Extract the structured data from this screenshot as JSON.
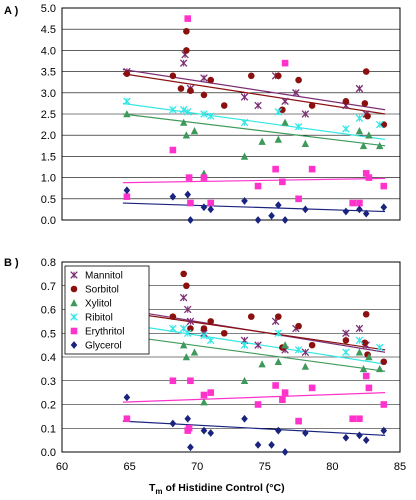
{
  "colors": {
    "Mannitol": "#7b2d73",
    "Sorbitol": "#8b1111",
    "Xylitol": "#3e9a5a",
    "Ribitol": "#33e6e6",
    "Erythritol": "#ff33cc",
    "Glycerol": "#1a237e"
  },
  "chart_data": [
    {
      "panel": "A",
      "label": "A )",
      "type": "scatter",
      "xlim": [
        60,
        85
      ],
      "ylim": [
        0,
        5
      ],
      "yticks": [
        "0.0",
        "0.5",
        "1.0",
        "1.5",
        "2.0",
        "2.5",
        "3.0",
        "3.5",
        "4.0",
        "4.5",
        "5.0"
      ],
      "grid": true,
      "series": [
        {
          "name": "Mannitol",
          "marker": "x",
          "trend": [
            3.55,
            2.6
          ],
          "points": [
            [
              64.8,
              3.5
            ],
            [
              69,
              3.7
            ],
            [
              69.1,
              3.9
            ],
            [
              69.5,
              3.1
            ],
            [
              70.5,
              3.35
            ],
            [
              73.5,
              2.9
            ],
            [
              74.5,
              2.7
            ],
            [
              75.8,
              3.4
            ],
            [
              76.5,
              2.8
            ],
            [
              77.3,
              3.0
            ],
            [
              78,
              2.5
            ],
            [
              81,
              2.7
            ],
            [
              82,
              3.1
            ],
            [
              82.5,
              2.5
            ]
          ]
        },
        {
          "name": "Sorbitol",
          "marker": "circle",
          "trend": [
            3.45,
            2.5
          ],
          "points": [
            [
              64.8,
              3.45
            ],
            [
              68.2,
              3.4
            ],
            [
              68.8,
              3.1
            ],
            [
              69.2,
              4.45
            ],
            [
              69.2,
              4.0
            ],
            [
              69.5,
              3.05
            ],
            [
              70.5,
              2.95
            ],
            [
              71,
              3.3
            ],
            [
              72,
              2.7
            ],
            [
              74,
              3.4
            ],
            [
              76,
              3.4
            ],
            [
              76.3,
              2.6
            ],
            [
              77.5,
              3.3
            ],
            [
              78.5,
              2.7
            ],
            [
              81,
              2.8
            ],
            [
              82.4,
              2.75
            ],
            [
              82.5,
              3.5
            ],
            [
              82.6,
              2.45
            ],
            [
              83.8,
              2.25
            ]
          ]
        },
        {
          "name": "Ribitol",
          "marker": "x",
          "trend": [
            2.75,
            1.9
          ],
          "points": [
            [
              64.8,
              2.8
            ],
            [
              68.2,
              2.6
            ],
            [
              69,
              2.6
            ],
            [
              69.3,
              2.55
            ],
            [
              70.5,
              2.5
            ],
            [
              71,
              2.45
            ],
            [
              73.5,
              2.3
            ],
            [
              76,
              2.55
            ],
            [
              77.5,
              2.2
            ],
            [
              81,
              2.15
            ],
            [
              82,
              2.4
            ],
            [
              83.5,
              2.25
            ]
          ]
        },
        {
          "name": "Xylitol",
          "marker": "triangle",
          "trend": [
            2.5,
            1.75
          ],
          "points": [
            [
              64.8,
              2.5
            ],
            [
              69,
              2.3
            ],
            [
              69.2,
              2.0
            ],
            [
              69.8,
              2.1
            ],
            [
              70.5,
              1.1
            ],
            [
              73.5,
              1.5
            ],
            [
              74.8,
              1.85
            ],
            [
              76,
              1.9
            ],
            [
              76.5,
              2.3
            ],
            [
              78,
              1.8
            ],
            [
              82,
              2.1
            ],
            [
              82.3,
              1.75
            ],
            [
              82.7,
              2.0
            ],
            [
              83.5,
              1.75
            ]
          ]
        },
        {
          "name": "Erythritol",
          "marker": "square",
          "trend": [
            0.88,
            0.98
          ],
          "points": [
            [
              64.8,
              0.55
            ],
            [
              68.2,
              1.65
            ],
            [
              69.3,
              4.75
            ],
            [
              69.4,
              1.0
            ],
            [
              69.5,
              0.4
            ],
            [
              70.5,
              1.0
            ],
            [
              71,
              0.4
            ],
            [
              74.5,
              0.8
            ],
            [
              75.8,
              1.2
            ],
            [
              76.5,
              3.7
            ],
            [
              76.3,
              0.9
            ],
            [
              77.5,
              0.5
            ],
            [
              78.5,
              1.2
            ],
            [
              81.5,
              0.4
            ],
            [
              82,
              0.4
            ],
            [
              82.5,
              1.1
            ],
            [
              82.7,
              1.0
            ],
            [
              83.8,
              0.8
            ]
          ]
        },
        {
          "name": "Glycerol",
          "marker": "diamond",
          "trend": [
            0.4,
            0.2
          ],
          "points": [
            [
              64.8,
              0.7
            ],
            [
              68.2,
              0.55
            ],
            [
              69.3,
              0.6
            ],
            [
              69.5,
              0.0
            ],
            [
              70.5,
              0.3
            ],
            [
              71,
              0.25
            ],
            [
              73.5,
              0.45
            ],
            [
              74.5,
              0.0
            ],
            [
              75.5,
              0.1
            ],
            [
              76,
              0.35
            ],
            [
              76.5,
              0.0
            ],
            [
              78,
              0.25
            ],
            [
              81,
              0.2
            ],
            [
              82,
              0.25
            ],
            [
              82.5,
              0.15
            ],
            [
              83.8,
              0.3
            ]
          ]
        }
      ]
    },
    {
      "panel": "B",
      "label": "B )",
      "type": "scatter",
      "xlim": [
        60,
        85
      ],
      "ylim": [
        0,
        0.8
      ],
      "xticks": [
        "60",
        "65",
        "70",
        "75",
        "80",
        "85"
      ],
      "yticks": [
        "0.0",
        "0.1",
        "0.2",
        "0.3",
        "0.4",
        "0.5",
        "0.6",
        "0.7",
        "0.8"
      ],
      "xlabel_main": "T",
      "xlabel_sub": "m",
      "xlabel_rest": " of Histidine Control (°C)",
      "grid": true,
      "legend": {
        "position": "top-left",
        "entries": [
          "Mannitol",
          "Sorbitol",
          "Xylitol",
          "Ribitol",
          "Erythritol",
          "Glycerol"
        ]
      },
      "series": [
        {
          "name": "Mannitol",
          "marker": "x",
          "trend": [
            0.6,
            0.42
          ],
          "points": [
            [
              64.8,
              0.58
            ],
            [
              69,
              0.65
            ],
            [
              69.3,
              0.6
            ],
            [
              69.5,
              0.55
            ],
            [
              70.5,
              0.5
            ],
            [
              73.5,
              0.47
            ],
            [
              74.5,
              0.45
            ],
            [
              75.8,
              0.55
            ],
            [
              76.5,
              0.43
            ],
            [
              77.3,
              0.52
            ],
            [
              78,
              0.42
            ],
            [
              81,
              0.5
            ],
            [
              82,
              0.52
            ],
            [
              82.5,
              0.45
            ]
          ]
        },
        {
          "name": "Sorbitol",
          "marker": "circle",
          "trend": [
            0.59,
            0.43
          ],
          "points": [
            [
              64.8,
              0.58
            ],
            [
              68.2,
              0.57
            ],
            [
              69,
              0.75
            ],
            [
              69.2,
              0.7
            ],
            [
              69.5,
              0.52
            ],
            [
              70.5,
              0.52
            ],
            [
              71,
              0.55
            ],
            [
              72,
              0.5
            ],
            [
              74,
              0.57
            ],
            [
              76,
              0.57
            ],
            [
              76.3,
              0.44
            ],
            [
              77.5,
              0.53
            ],
            [
              78.5,
              0.45
            ],
            [
              81,
              0.47
            ],
            [
              82.4,
              0.46
            ],
            [
              82.5,
              0.58
            ],
            [
              82.6,
              0.41
            ],
            [
              83.8,
              0.38
            ]
          ]
        },
        {
          "name": "Ribitol",
          "marker": "x",
          "trend": [
            0.54,
            0.37
          ],
          "points": [
            [
              64.8,
              0.55
            ],
            [
              68.2,
              0.52
            ],
            [
              69,
              0.52
            ],
            [
              69.3,
              0.5
            ],
            [
              70.5,
              0.49
            ],
            [
              71,
              0.47
            ],
            [
              73.5,
              0.45
            ],
            [
              76,
              0.5
            ],
            [
              77.5,
              0.43
            ],
            [
              81,
              0.42
            ],
            [
              82,
              0.47
            ],
            [
              83.5,
              0.44
            ]
          ]
        },
        {
          "name": "Xylitol",
          "marker": "triangle",
          "trend": [
            0.49,
            0.34
          ],
          "points": [
            [
              64.8,
              0.5
            ],
            [
              69,
              0.45
            ],
            [
              69.2,
              0.4
            ],
            [
              69.8,
              0.42
            ],
            [
              70.5,
              0.21
            ],
            [
              73.5,
              0.3
            ],
            [
              74.8,
              0.37
            ],
            [
              76,
              0.38
            ],
            [
              76.5,
              0.45
            ],
            [
              78,
              0.36
            ],
            [
              82,
              0.42
            ],
            [
              82.3,
              0.35
            ],
            [
              82.7,
              0.4
            ],
            [
              83.5,
              0.35
            ]
          ]
        },
        {
          "name": "Erythritol",
          "marker": "square",
          "trend": [
            0.21,
            0.25
          ],
          "points": [
            [
              64.8,
              0.14
            ],
            [
              68.2,
              0.3
            ],
            [
              69.3,
              0.09
            ],
            [
              69.4,
              0.1
            ],
            [
              69.5,
              0.3
            ],
            [
              70.5,
              0.24
            ],
            [
              71,
              0.25
            ],
            [
              74.5,
              0.2
            ],
            [
              75.8,
              0.28
            ],
            [
              76.5,
              0.25
            ],
            [
              76.3,
              0.22
            ],
            [
              77.5,
              0.13
            ],
            [
              78.5,
              0.27
            ],
            [
              81.5,
              0.14
            ],
            [
              82,
              0.14
            ],
            [
              82.5,
              0.32
            ],
            [
              82.7,
              0.27
            ],
            [
              83.8,
              0.2
            ]
          ]
        },
        {
          "name": "Glycerol",
          "marker": "diamond",
          "trend": [
            0.13,
            0.07
          ],
          "points": [
            [
              64.8,
              0.23
            ],
            [
              68.2,
              0.12
            ],
            [
              69.3,
              0.14
            ],
            [
              69.5,
              0.02
            ],
            [
              70.5,
              0.09
            ],
            [
              71,
              0.08
            ],
            [
              73.5,
              0.14
            ],
            [
              74.5,
              0.03
            ],
            [
              75.5,
              0.03
            ],
            [
              76,
              0.09
            ],
            [
              76.5,
              0.0
            ],
            [
              78,
              0.08
            ],
            [
              81,
              0.06
            ],
            [
              82,
              0.07
            ],
            [
              82.5,
              0.05
            ],
            [
              83.8,
              0.09
            ]
          ]
        }
      ]
    }
  ]
}
